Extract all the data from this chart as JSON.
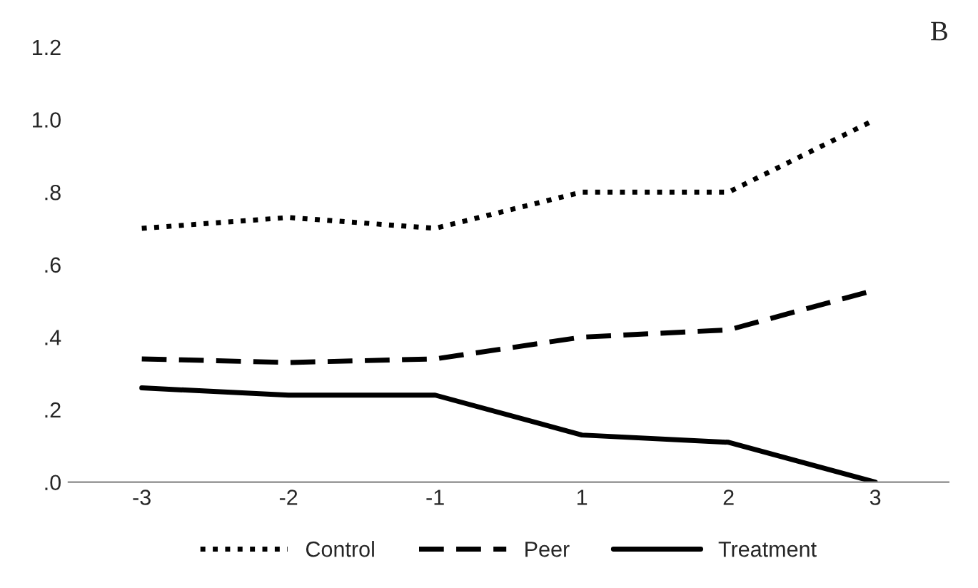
{
  "chart_data": {
    "type": "line",
    "categories": [
      "-3",
      "-2",
      "-1",
      "1",
      "2",
      "3"
    ],
    "series": [
      {
        "name": "Control",
        "color": "#000000",
        "line_style": "dotted",
        "values": [
          0.7,
          0.73,
          0.7,
          0.8,
          0.8,
          1.0
        ]
      },
      {
        "name": "Peer",
        "color": "#000000",
        "line_style": "dashed",
        "values": [
          0.34,
          0.33,
          0.34,
          0.4,
          0.42,
          0.53
        ]
      },
      {
        "name": "Treatment",
        "color": "#000000",
        "line_style": "solid",
        "values": [
          0.26,
          0.24,
          0.24,
          0.13,
          0.11,
          0.0
        ]
      }
    ],
    "ylim": [
      0,
      1.2
    ],
    "yticks": [
      {
        "value": 0,
        "label": ".0"
      },
      {
        "value": 0.2,
        "label": ".2"
      },
      {
        "value": 0.4,
        "label": ".4"
      },
      {
        "value": 0.6,
        "label": ".6"
      },
      {
        "value": 0.8,
        "label": ".8"
      },
      {
        "value": 1.0,
        "label": "1.0"
      },
      {
        "value": 1.2,
        "label": "1.2"
      }
    ],
    "annotations": [
      "B"
    ],
    "grid": false,
    "legend": "bottom",
    "marker": "none"
  }
}
